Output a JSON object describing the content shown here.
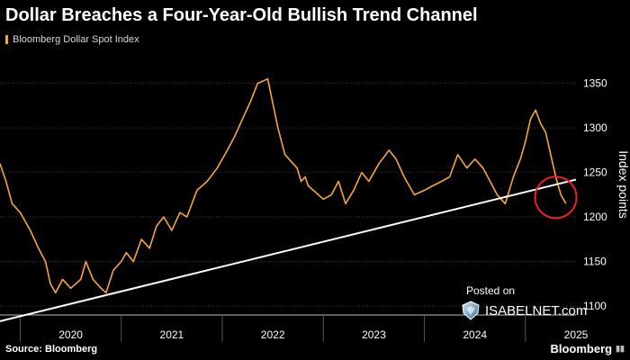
{
  "header": {
    "title": "Dollar Breaches a Four-Year-Old Bullish Trend Channel"
  },
  "legend": {
    "label": "Bloomberg Dollar Spot Index",
    "color": "#f5a640"
  },
  "footer": {
    "source": "Source: Bloomberg",
    "brand": "Bloomberg"
  },
  "watermark": {
    "posted": "Posted on",
    "site": "ISABELNET.com"
  },
  "colors": {
    "background": "#000000",
    "grid": "#3a3a3a",
    "line": "#f5a640",
    "trend": "#ffffff",
    "circle": "#e8202a"
  },
  "chart_data": {
    "type": "line",
    "title": "Dollar Breaches a Four-Year-Old Bullish Trend Channel",
    "ylabel": "Index points",
    "xlabel": "",
    "xlim": [
      2019.8,
      2025.5
    ],
    "ylim": [
      1090,
      1385
    ],
    "y_ticks": [
      1100,
      1150,
      1200,
      1250,
      1300,
      1350
    ],
    "x_tick_labels": [
      "2020",
      "2021",
      "2022",
      "2023",
      "2024",
      "2025"
    ],
    "grid": "horizontal",
    "legend_position": "top-left",
    "series": [
      {
        "name": "Bloomberg Dollar Spot Index",
        "x": [
          2019.8,
          2019.86,
          2019.92,
          2020.0,
          2020.1,
          2020.18,
          2020.25,
          2020.3,
          2020.35,
          2020.42,
          2020.5,
          2020.6,
          2020.65,
          2020.72,
          2020.8,
          2020.85,
          2020.92,
          2021.0,
          2021.05,
          2021.12,
          2021.2,
          2021.28,
          2021.35,
          2021.42,
          2021.5,
          2021.58,
          2021.65,
          2021.75,
          2021.85,
          2021.95,
          2022.05,
          2022.12,
          2022.2,
          2022.28,
          2022.35,
          2022.45,
          2022.55,
          2022.62,
          2022.7,
          2022.74,
          2022.78,
          2022.82,
          2022.85,
          2022.9,
          2023.0,
          2023.08,
          2023.15,
          2023.22,
          2023.3,
          2023.38,
          2023.45,
          2023.55,
          2023.65,
          2023.72,
          2023.8,
          2023.9,
          2024.0,
          2024.08,
          2024.17,
          2024.25,
          2024.33,
          2024.42,
          2024.5,
          2024.58,
          2024.65,
          2024.72,
          2024.8,
          2024.88,
          2024.95,
          2025.0,
          2025.05,
          2025.1,
          2025.15,
          2025.2,
          2025.25,
          2025.3,
          2025.35,
          2025.4
        ],
        "y": [
          1260,
          1240,
          1215,
          1205,
          1185,
          1165,
          1150,
          1125,
          1115,
          1130,
          1120,
          1130,
          1150,
          1130,
          1120,
          1115,
          1140,
          1150,
          1160,
          1150,
          1175,
          1165,
          1190,
          1200,
          1185,
          1205,
          1200,
          1230,
          1240,
          1255,
          1275,
          1290,
          1310,
          1330,
          1350,
          1355,
          1300,
          1270,
          1260,
          1255,
          1240,
          1245,
          1235,
          1230,
          1220,
          1225,
          1240,
          1215,
          1230,
          1250,
          1240,
          1260,
          1275,
          1265,
          1245,
          1225,
          1230,
          1235,
          1240,
          1245,
          1270,
          1255,
          1265,
          1255,
          1240,
          1225,
          1215,
          1245,
          1265,
          1285,
          1310,
          1320,
          1305,
          1295,
          1270,
          1245,
          1225,
          1215
        ]
      },
      {
        "name": "Trend channel",
        "x": [
          2019.8,
          2025.5
        ],
        "y": [
          1083,
          1242
        ]
      }
    ],
    "annotations": [
      {
        "type": "circle",
        "x": 2025.3,
        "y": 1222
      }
    ]
  }
}
